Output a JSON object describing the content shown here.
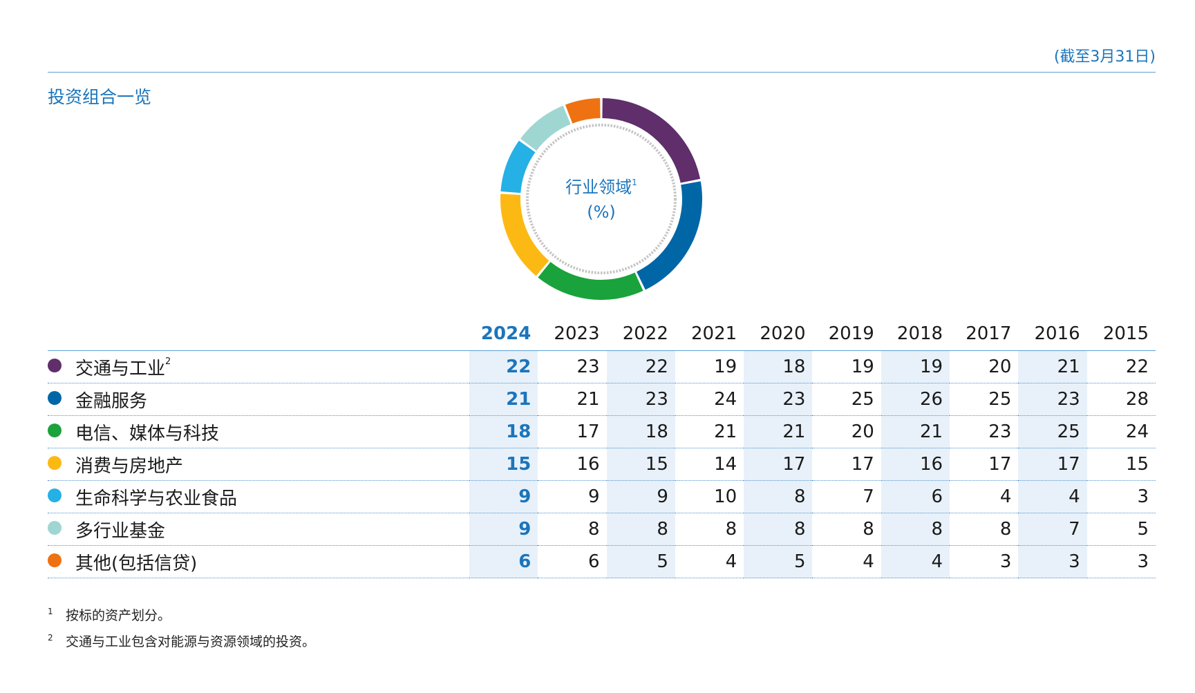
{
  "as_of": "(截至3月31日)",
  "section_title": "投资组合一览",
  "donut": {
    "label": "行业领域",
    "label_note": "1",
    "unit": "(%)"
  },
  "table": {
    "years": [
      "2024",
      "2023",
      "2022",
      "2021",
      "2020",
      "2019",
      "2018",
      "2017",
      "2016",
      "2015"
    ],
    "rows": [
      {
        "label": "交通与工业",
        "note": "2",
        "color": "#5f2e6b",
        "values": [
          "22",
          "23",
          "22",
          "19",
          "18",
          "19",
          "19",
          "20",
          "21",
          "22"
        ]
      },
      {
        "label": "金融服务",
        "note": "",
        "color": "#0066a6",
        "values": [
          "21",
          "21",
          "23",
          "24",
          "23",
          "25",
          "26",
          "25",
          "23",
          "28"
        ]
      },
      {
        "label": "电信、媒体与科技",
        "note": "",
        "color": "#1aa33c",
        "values": [
          "18",
          "17",
          "18",
          "21",
          "21",
          "20",
          "21",
          "23",
          "25",
          "24"
        ]
      },
      {
        "label": "消费与房地产",
        "note": "",
        "color": "#fdb913",
        "values": [
          "15",
          "16",
          "15",
          "14",
          "17",
          "17",
          "16",
          "17",
          "17",
          "15"
        ]
      },
      {
        "label": "生命科学与农业食品",
        "note": "",
        "color": "#25b0e6",
        "values": [
          "9",
          "9",
          "9",
          "10",
          "8",
          "7",
          "6",
          "4",
          "4",
          "3"
        ]
      },
      {
        "label": "多行业基金",
        "note": "",
        "color": "#9fd6d2",
        "values": [
          "9",
          "8",
          "8",
          "8",
          "8",
          "8",
          "8",
          "8",
          "7",
          "5"
        ]
      },
      {
        "label": "其他(包括信贷)",
        "note": "",
        "color": "#ee7211",
        "values": [
          "6",
          "6",
          "5",
          "4",
          "5",
          "4",
          "4",
          "3",
          "3",
          "3"
        ]
      }
    ]
  },
  "chart_data": {
    "type": "pie",
    "title": "行业领域",
    "unit": "%",
    "year": "2024",
    "categories": [
      "交通与工业",
      "金融服务",
      "电信、媒体与科技",
      "消费与房地产",
      "生命科学与农业食品",
      "多行业基金",
      "其他(包括信贷)"
    ],
    "values": [
      22,
      21,
      18,
      15,
      9,
      9,
      6
    ],
    "colors": [
      "#5f2e6b",
      "#0066a6",
      "#1aa33c",
      "#fdb913",
      "#25b0e6",
      "#9fd6d2",
      "#ee7211"
    ]
  },
  "footnotes": [
    {
      "mark": "1",
      "text": "按标的资产划分。"
    },
    {
      "mark": "2",
      "text": "交通与工业包含对能源与资源领域的投资。"
    }
  ]
}
